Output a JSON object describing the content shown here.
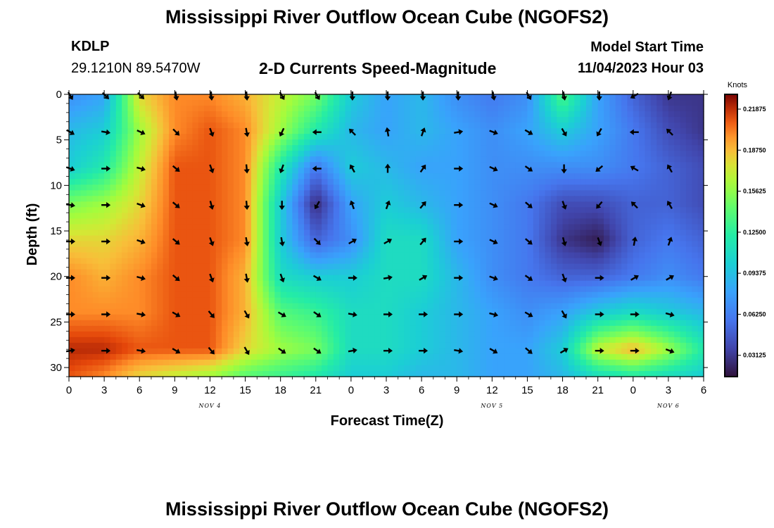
{
  "header": {
    "title": "Mississippi River Outflow Ocean Cube (NGOFS2)",
    "station": "KDLP",
    "coords": "29.1210N  89.5470W",
    "subtitle": "2-D Currents Speed-Magnitude",
    "start_label": "Model Start Time",
    "start_value": "11/04/2023 Hour 03"
  },
  "footer": {
    "title": "Mississippi River Outflow Ocean Cube (NGOFS2)"
  },
  "chart_data": {
    "type": "heatmap",
    "xlabel": "Forecast Time(Z)",
    "ylabel": "Depth (ft)",
    "x_hours_range": [
      0,
      54
    ],
    "ylim": [
      0,
      31
    ],
    "x_tick_labels": [
      "0",
      "3",
      "6",
      "9",
      "12",
      "15",
      "18",
      "21",
      "0",
      "3",
      "6",
      "9",
      "12",
      "15",
      "18",
      "21",
      "0",
      "3",
      "6"
    ],
    "day_labels": [
      {
        "text": "NOV 4",
        "hour": 12
      },
      {
        "text": "NOV 5",
        "hour": 36
      },
      {
        "text": "NOV 6",
        "hour": 51
      }
    ],
    "y_ticks": [
      0,
      5,
      10,
      15,
      20,
      25,
      30
    ],
    "colorbar": {
      "unit": "Knots",
      "min": 0.015,
      "max": 0.23,
      "ticks": [
        "0.21875",
        "0.18750",
        "0.15625",
        "0.12500",
        "0.09375",
        "0.06250",
        "0.03125"
      ],
      "tick_values": [
        0.21875,
        0.1875,
        0.15625,
        0.125,
        0.09375,
        0.0625,
        0.03125
      ]
    },
    "speed_grid": {
      "hours": [
        0,
        3,
        6,
        9,
        12,
        15,
        18,
        21,
        24,
        27,
        30,
        33,
        36,
        39,
        42,
        45,
        48,
        51,
        54
      ],
      "depths": [
        0,
        4,
        8,
        12,
        16,
        20,
        24,
        28,
        31
      ],
      "values": [
        [
          0.07,
          0.08,
          0.18,
          0.2,
          0.2,
          0.19,
          0.17,
          0.15,
          0.1,
          0.08,
          0.09,
          0.07,
          0.06,
          0.07,
          0.14,
          0.08,
          0.05,
          0.03,
          0.03
        ],
        [
          0.09,
          0.1,
          0.16,
          0.2,
          0.21,
          0.2,
          0.16,
          0.12,
          0.09,
          0.08,
          0.09,
          0.08,
          0.07,
          0.08,
          0.1,
          0.08,
          0.06,
          0.04,
          0.03
        ],
        [
          0.1,
          0.12,
          0.17,
          0.21,
          0.21,
          0.2,
          0.12,
          0.06,
          0.1,
          0.09,
          0.08,
          0.08,
          0.07,
          0.07,
          0.07,
          0.07,
          0.06,
          0.05,
          0.04
        ],
        [
          0.15,
          0.16,
          0.18,
          0.21,
          0.21,
          0.2,
          0.1,
          0.025,
          0.08,
          0.1,
          0.09,
          0.08,
          0.07,
          0.06,
          0.04,
          0.04,
          0.05,
          0.05,
          0.04
        ],
        [
          0.18,
          0.18,
          0.19,
          0.21,
          0.21,
          0.2,
          0.1,
          0.05,
          0.07,
          0.11,
          0.11,
          0.08,
          0.07,
          0.06,
          0.03,
          0.02,
          0.05,
          0.06,
          0.05
        ],
        [
          0.2,
          0.19,
          0.2,
          0.21,
          0.21,
          0.19,
          0.11,
          0.1,
          0.1,
          0.11,
          0.11,
          0.09,
          0.07,
          0.06,
          0.05,
          0.05,
          0.06,
          0.07,
          0.06
        ],
        [
          0.2,
          0.2,
          0.2,
          0.21,
          0.21,
          0.19,
          0.14,
          0.13,
          0.11,
          0.11,
          0.1,
          0.09,
          0.08,
          0.07,
          0.08,
          0.1,
          0.11,
          0.1,
          0.09
        ],
        [
          0.22,
          0.22,
          0.21,
          0.21,
          0.21,
          0.18,
          0.16,
          0.15,
          0.11,
          0.11,
          0.1,
          0.09,
          0.08,
          0.08,
          0.1,
          0.17,
          0.19,
          0.16,
          0.12
        ],
        [
          0.21,
          0.2,
          0.18,
          0.17,
          0.16,
          0.14,
          0.13,
          0.12,
          0.1,
          0.1,
          0.09,
          0.09,
          0.08,
          0.08,
          0.09,
          0.11,
          0.12,
          0.11,
          0.1
        ]
      ]
    },
    "vectors": {
      "hours": [
        0,
        3,
        6,
        9,
        12,
        15,
        18,
        21,
        24,
        27,
        30,
        33,
        36,
        39,
        42,
        45,
        48,
        51
      ],
      "depths": [
        0,
        4,
        8,
        12,
        16,
        20,
        24,
        28
      ],
      "direction_deg": [
        [
          150,
          135,
          135,
          170,
          175,
          175,
          150,
          150,
          180,
          180,
          180,
          180,
          170,
          150,
          170,
          180,
          240,
          200
        ],
        [
          120,
          100,
          115,
          135,
          160,
          170,
          205,
          270,
          315,
          350,
          20,
          80,
          110,
          120,
          150,
          210,
          270,
          315
        ],
        [
          110,
          90,
          105,
          130,
          160,
          175,
          200,
          270,
          330,
          0,
          35,
          90,
          115,
          125,
          180,
          230,
          300,
          330
        ],
        [
          100,
          90,
          110,
          130,
          165,
          175,
          180,
          210,
          340,
          20,
          40,
          90,
          115,
          130,
          160,
          220,
          315,
          330
        ],
        [
          90,
          90,
          110,
          130,
          160,
          170,
          170,
          135,
          60,
          60,
          40,
          90,
          115,
          130,
          165,
          160,
          10,
          20
        ],
        [
          90,
          90,
          105,
          130,
          160,
          170,
          160,
          120,
          90,
          80,
          60,
          90,
          110,
          125,
          160,
          90,
          60,
          60
        ],
        [
          90,
          90,
          100,
          120,
          140,
          150,
          120,
          125,
          100,
          90,
          90,
          90,
          105,
          120,
          150,
          90,
          90,
          105
        ],
        [
          80,
          90,
          100,
          120,
          140,
          150,
          125,
          125,
          80,
          90,
          90,
          100,
          120,
          130,
          60,
          90,
          90,
          110
        ]
      ]
    }
  }
}
